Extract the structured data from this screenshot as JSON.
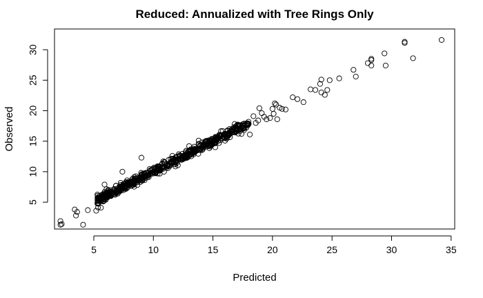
{
  "chart_data": {
    "type": "scatter",
    "title": "Reduced: Annualized with Tree Rings Only",
    "xlabel": "Predicted",
    "ylabel": "Observed",
    "xlim": [
      1.7,
      35.3
    ],
    "ylim": [
      0.6,
      33.4
    ],
    "xticks": [
      5,
      10,
      15,
      20,
      25,
      30,
      35
    ],
    "yticks": [
      5,
      10,
      15,
      20,
      25,
      30
    ],
    "marker": "open-circle",
    "grid": false,
    "legend": "none",
    "outliers": [
      [
        2.2,
        1.9
      ],
      [
        2.3,
        1.4
      ],
      [
        2.2,
        1.3
      ],
      [
        3.4,
        3.8
      ],
      [
        3.5,
        2.8
      ],
      [
        3.6,
        3.4
      ],
      [
        4.1,
        1.3
      ],
      [
        4.5,
        3.7
      ],
      [
        5.2,
        3.6
      ],
      [
        5.3,
        4.8
      ],
      [
        5.6,
        4.1
      ],
      [
        5.9,
        7.9
      ],
      [
        6.0,
        5.4
      ],
      [
        7.0,
        6.4
      ],
      [
        7.4,
        10.0
      ],
      [
        8.3,
        8.0
      ],
      [
        9.0,
        12.3
      ],
      [
        9.6,
        9.1
      ],
      [
        10.4,
        10.8
      ],
      [
        11.6,
        12.6
      ],
      [
        12.4,
        12.2
      ],
      [
        13.0,
        14.2
      ],
      [
        13.8,
        15.1
      ],
      [
        15.2,
        14.0
      ],
      [
        16.3,
        15.9
      ],
      [
        17.4,
        16.2
      ],
      [
        17.8,
        17.2
      ],
      [
        18.0,
        17.8
      ],
      [
        18.1,
        16.1
      ],
      [
        18.4,
        19.1
      ],
      [
        18.6,
        18.0
      ],
      [
        18.8,
        18.4
      ],
      [
        18.9,
        20.4
      ],
      [
        19.1,
        19.6
      ],
      [
        19.3,
        19.0
      ],
      [
        19.5,
        18.6
      ],
      [
        19.8,
        18.8
      ],
      [
        20.0,
        20.3
      ],
      [
        20.1,
        19.5
      ],
      [
        20.2,
        21.2
      ],
      [
        20.3,
        21.0
      ],
      [
        20.4,
        18.6
      ],
      [
        20.6,
        20.5
      ],
      [
        20.8,
        20.3
      ],
      [
        21.1,
        20.2
      ],
      [
        21.7,
        22.2
      ],
      [
        22.1,
        21.9
      ],
      [
        22.6,
        21.4
      ],
      [
        23.2,
        23.5
      ],
      [
        23.6,
        23.4
      ],
      [
        24.0,
        24.4
      ],
      [
        24.1,
        25.1
      ],
      [
        24.1,
        23.0
      ],
      [
        24.4,
        22.6
      ],
      [
        24.6,
        23.4
      ],
      [
        24.8,
        25.0
      ],
      [
        25.6,
        25.3
      ],
      [
        26.8,
        26.7
      ],
      [
        27.0,
        25.6
      ],
      [
        28.0,
        27.8
      ],
      [
        28.3,
        28.3
      ],
      [
        28.3,
        28.5
      ],
      [
        28.3,
        27.4
      ],
      [
        29.4,
        29.4
      ],
      [
        29.5,
        27.4
      ],
      [
        31.1,
        31.1
      ],
      [
        31.1,
        31.3
      ],
      [
        31.8,
        28.6
      ],
      [
        34.2,
        31.6
      ]
    ],
    "main_band": {
      "x_range": [
        5.3,
        18.0
      ],
      "relation": "observed ≈ predicted",
      "spread": 0.35,
      "count": 640
    }
  }
}
